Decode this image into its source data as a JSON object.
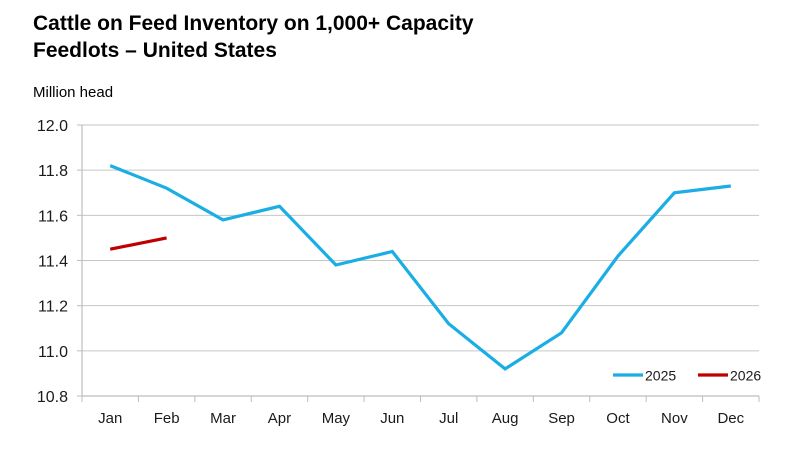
{
  "chart_data": {
    "type": "line",
    "title": "Cattle on Feed Inventory on 1,000+ Capacity Feedlots – United States",
    "title_lines": [
      "Cattle on Feed Inventory on 1,000+ Capacity",
      "Feedlots – United States"
    ],
    "xlabel": "",
    "ylabel": "Million head",
    "categories": [
      "Jan",
      "Feb",
      "Mar",
      "Apr",
      "May",
      "Jun",
      "Jul",
      "Aug",
      "Sep",
      "Oct",
      "Nov",
      "Dec"
    ],
    "ylim": [
      10.8,
      12.0
    ],
    "yticks": [
      10.8,
      11.0,
      11.2,
      11.4,
      11.6,
      11.8,
      12.0
    ],
    "ytick_labels": [
      "10.8",
      "11.0",
      "11.2",
      "11.4",
      "11.6",
      "11.8",
      "12.0"
    ],
    "grid": true,
    "legend_position": "bottom-right",
    "series": [
      {
        "name": "2025",
        "color": "#1aaee5",
        "values": [
          11.82,
          11.72,
          11.58,
          11.64,
          11.38,
          11.44,
          11.12,
          10.92,
          11.08,
          11.42,
          11.7,
          11.73
        ]
      },
      {
        "name": "2026",
        "color": "#c00000",
        "values": [
          11.45,
          11.5,
          null,
          null,
          null,
          null,
          null,
          null,
          null,
          null,
          null,
          null
        ]
      }
    ]
  }
}
